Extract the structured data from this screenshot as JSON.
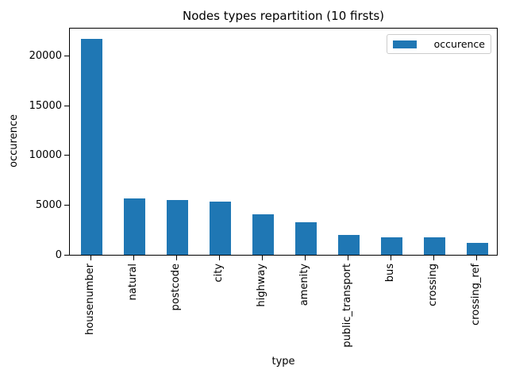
{
  "chart_data": {
    "type": "bar",
    "title": "Nodes types repartition (10 firsts)",
    "xlabel": "type",
    "ylabel": "occurence",
    "categories": [
      "housenumber",
      "natural",
      "postcode",
      "city",
      "highway",
      "amenity",
      "public_transport",
      "bus",
      "crossing",
      "crossing_ref"
    ],
    "series": [
      {
        "name": "occurence",
        "values": [
          21700,
          5640,
          5480,
          5340,
          4050,
          3300,
          1970,
          1750,
          1740,
          1170
        ]
      }
    ],
    "ylim": [
      0,
      22860
    ],
    "yticks": [
      0,
      5000,
      10000,
      15000,
      20000
    ],
    "x_tick_rotation": 90,
    "grid": false,
    "bar_color": "#1f77b4",
    "legend": {
      "position": "upper right",
      "entries": [
        "occurence"
      ]
    }
  },
  "colors": {
    "bar": "#1f77b4",
    "text": "#000000",
    "axis": "#000000",
    "legend_border": "#cccccc",
    "background": "#ffffff"
  }
}
